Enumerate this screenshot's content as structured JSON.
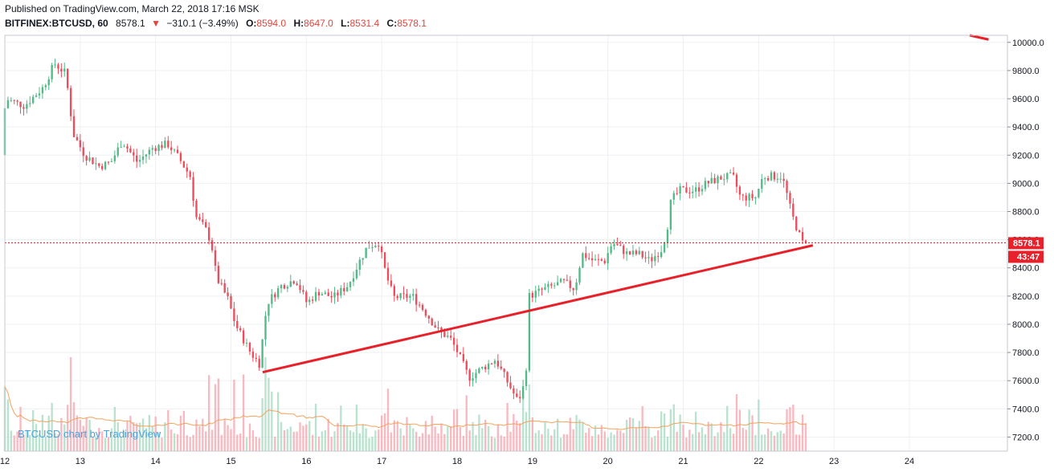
{
  "header": {
    "published": "Published on TradingView.com, March 22, 2018 17:16 MSK",
    "symbol": "BITFINEX:BTCUSD, 60",
    "last": "8578.1",
    "change": "−310.1 (−3.49%)",
    "o_label": "O:",
    "o_val": "8594.0",
    "h_label": "H:",
    "h_val": "8647.0",
    "l_label": "L:",
    "l_val": "8531.4",
    "c_label": "C:",
    "c_val": "8578.1"
  },
  "price_tag": "8578.1",
  "countdown_tag": "43:47",
  "watermark": "BTCUSD chart by TradingView",
  "colors": {
    "up": "#53b987",
    "down": "#eb4d5c",
    "trend": "#e8202a",
    "price_line": "#e8202a",
    "ma": "#f5a25c"
  },
  "chart_data": {
    "type": "candlestick",
    "symbol": "BITFINEX:BTCUSD",
    "interval": "60",
    "ylim": [
      7100,
      10050
    ],
    "y_ticks": [
      7200,
      7400,
      7600,
      7800,
      8000,
      8200,
      8400,
      8600,
      8800,
      9000,
      9200,
      9400,
      9600,
      9800,
      10000
    ],
    "y_tick_labels": [
      "7200.0",
      "7400.0",
      "7600.0",
      "7800.0",
      "8000.0",
      "8200.0",
      "8400.0",
      "8600.0",
      "8800.0",
      "9000.0",
      "9200.0",
      "9400.0",
      "9600.0",
      "9800.0",
      "10000.0"
    ],
    "x_range": [
      12.0,
      25.3
    ],
    "x_ticks": [
      12,
      13,
      14,
      15,
      16,
      17,
      18,
      19,
      20,
      21,
      22,
      23,
      24
    ],
    "x_tick_labels": [
      "12",
      "13",
      "14",
      "15",
      "16",
      "17",
      "18",
      "19",
      "20",
      "21",
      "22",
      "23",
      "24"
    ],
    "x_unit": "day of March 2018",
    "current_price": 8578.1,
    "price_anchors": [
      [
        12.0,
        9200
      ],
      [
        12.05,
        9600
      ],
      [
        12.3,
        9550
      ],
      [
        12.55,
        9680
      ],
      [
        12.7,
        9850
      ],
      [
        12.85,
        9780
      ],
      [
        12.95,
        9350
      ],
      [
        13.1,
        9200
      ],
      [
        13.3,
        9120
      ],
      [
        13.45,
        9150
      ],
      [
        13.6,
        9300
      ],
      [
        13.8,
        9150
      ],
      [
        14.0,
        9250
      ],
      [
        14.2,
        9280
      ],
      [
        14.35,
        9180
      ],
      [
        14.5,
        9050
      ],
      [
        14.58,
        8760
      ],
      [
        14.7,
        8680
      ],
      [
        14.78,
        8580
      ],
      [
        14.85,
        8330
      ],
      [
        15.0,
        8180
      ],
      [
        15.1,
        8000
      ],
      [
        15.3,
        7800
      ],
      [
        15.42,
        7720
      ],
      [
        15.52,
        8150
      ],
      [
        15.7,
        8270
      ],
      [
        15.9,
        8320
      ],
      [
        16.05,
        8150
      ],
      [
        16.2,
        8230
      ],
      [
        16.4,
        8190
      ],
      [
        16.6,
        8280
      ],
      [
        16.75,
        8450
      ],
      [
        16.85,
        8550
      ],
      [
        17.0,
        8580
      ],
      [
        17.1,
        8350
      ],
      [
        17.2,
        8190
      ],
      [
        17.45,
        8200
      ],
      [
        17.6,
        8100
      ],
      [
        17.8,
        7950
      ],
      [
        17.95,
        7900
      ],
      [
        18.05,
        7800
      ],
      [
        18.2,
        7620
      ],
      [
        18.35,
        7680
      ],
      [
        18.55,
        7750
      ],
      [
        18.7,
        7600
      ],
      [
        18.85,
        7450
      ],
      [
        18.95,
        7600
      ],
      [
        19.0,
        8200
      ],
      [
        19.2,
        8250
      ],
      [
        19.45,
        8300
      ],
      [
        19.6,
        8250
      ],
      [
        19.7,
        8500
      ],
      [
        19.85,
        8450
      ],
      [
        20.0,
        8450
      ],
      [
        20.1,
        8580
      ],
      [
        20.3,
        8500
      ],
      [
        20.45,
        8500
      ],
      [
        20.6,
        8450
      ],
      [
        20.75,
        8530
      ],
      [
        20.82,
        8650
      ],
      [
        20.88,
        8880
      ],
      [
        21.0,
        8950
      ],
      [
        21.2,
        8950
      ],
      [
        21.35,
        9000
      ],
      [
        21.55,
        9040
      ],
      [
        21.7,
        9050
      ],
      [
        21.8,
        8900
      ],
      [
        22.0,
        8900
      ],
      [
        22.1,
        9050
      ],
      [
        22.35,
        9050
      ],
      [
        22.4,
        8960
      ],
      [
        22.48,
        8780
      ],
      [
        22.55,
        8680
      ],
      [
        22.62,
        8578.1
      ]
    ],
    "volume_axis_max": 7800,
    "annotations": {
      "trendline_1": [
        [
          15.42,
          7660
        ],
        [
          22.72,
          8560
        ]
      ],
      "trendline_2": [
        [
          24.8,
          10050
        ],
        [
          25.05,
          10020
        ]
      ]
    }
  }
}
